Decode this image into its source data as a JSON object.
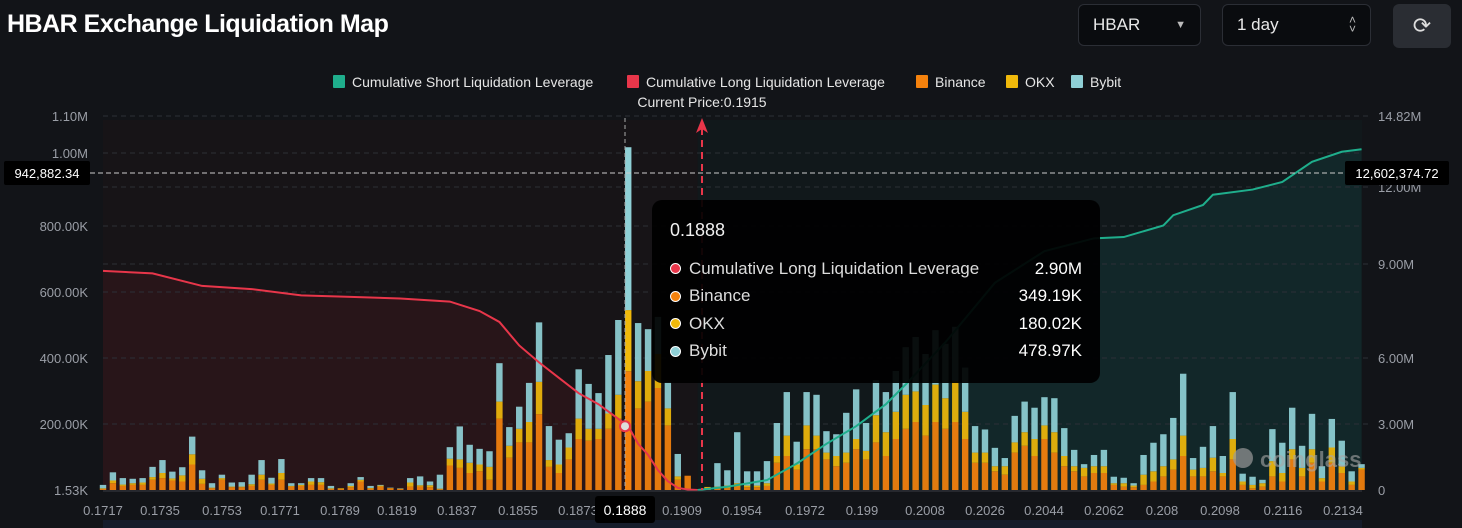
{
  "header": {
    "title": "HBAR Exchange Liquidation Map",
    "symbol_select": "HBAR",
    "range_select": "1 day",
    "refresh_icon": "refresh-icon"
  },
  "colors": {
    "short_cum": "#1fae8c",
    "long_cum": "#e8364a",
    "binance": "#f5820d",
    "okx": "#f0b90b",
    "bybit": "#8fd0d6"
  },
  "chart_data": {
    "type": "bar",
    "legend": [
      "Cumulative Short Liquidation Leverage",
      "Cumulative Long Liquidation Leverage",
      "Binance",
      "OKX",
      "Bybit"
    ],
    "legend_position": "top",
    "current_price_label": "Current Price:0.1915",
    "x_tick_labels": [
      "0.1717",
      "0.1735",
      "0.1753",
      "0.1771",
      "0.1789",
      "0.1819",
      "0.1837",
      "0.1855",
      "0.1873",
      "0.1909",
      "0.1954",
      "0.1972",
      "0.199",
      "0.2008",
      "0.2026",
      "0.2044",
      "0.2062",
      "0.208",
      "0.2098",
      "0.2116",
      "0.2134"
    ],
    "y_left_ticks": [
      "1.53K",
      "200.00K",
      "400.00K",
      "600.00K",
      "800.00K",
      "1.00M",
      "1.10M"
    ],
    "y_right_ticks": [
      "0",
      "3.00M",
      "6.00M",
      "9.00M",
      "12.00M",
      "14.82M"
    ],
    "y_left_unit": "K",
    "y_left_range": [
      0,
      1100
    ],
    "y_right_unit": "M",
    "y_right_range": [
      0,
      14.82
    ],
    "grid": true,
    "series": [
      {
        "name": "Binance",
        "values": [
          3,
          20,
          12,
          15,
          15,
          30,
          35,
          28,
          25,
          75,
          18,
          5,
          30,
          8,
          8,
          12,
          30,
          15,
          30,
          10,
          12,
          15,
          15,
          3,
          3,
          8,
          25,
          4,
          10,
          5,
          3,
          10,
          10,
          8,
          2,
          72,
          65,
          50,
          55,
          30,
          210,
          95,
          140,
          140,
          223,
          68,
          50,
          90,
          150,
          145,
          150,
          180,
          210,
          349.19,
          240,
          260,
          300,
          190,
          30,
          42,
          0,
          3,
          5,
          5,
          10,
          8,
          8,
          12,
          80,
          100,
          60,
          120,
          120,
          90,
          70,
          80,
          120,
          90,
          140,
          100,
          150,
          180,
          200,
          160,
          200,
          180,
          200,
          150,
          80,
          80,
          55,
          45,
          110,
          130,
          100,
          150,
          110,
          70,
          55,
          40,
          50,
          50,
          15,
          10,
          8,
          15,
          25,
          40,
          60,
          100,
          40,
          40,
          55,
          40,
          90,
          15,
          5,
          10,
          40,
          25,
          90,
          40,
          80,
          25,
          80,
          50,
          15,
          60
        ]
      },
      {
        "name": "OKX",
        "values": [
          2,
          8,
          4,
          5,
          7,
          8,
          15,
          6,
          18,
          30,
          15,
          2,
          5,
          2,
          2,
          5,
          15,
          4,
          20,
          2,
          3,
          10,
          8,
          2,
          2,
          4,
          5,
          2,
          3,
          1,
          1,
          12,
          4,
          6,
          2,
          20,
          25,
          30,
          20,
          38,
          50,
          35,
          40,
          60,
          95,
          20,
          25,
          35,
          60,
          35,
          30,
          45,
          70,
          180.02,
          80,
          90,
          100,
          50,
          10,
          0,
          0,
          6,
          5,
          8,
          10,
          5,
          5,
          8,
          20,
          60,
          15,
          70,
          40,
          20,
          30,
          30,
          30,
          25,
          80,
          70,
          80,
          100,
          90,
          90,
          110,
          90,
          120,
          80,
          30,
          30,
          15,
          25,
          30,
          40,
          50,
          40,
          60,
          30,
          15,
          25,
          20,
          20,
          5,
          10,
          5,
          30,
          30,
          30,
          30,
          60,
          20,
          25,
          40,
          10,
          60,
          10,
          10,
          10,
          45,
          25,
          30,
          25,
          40,
          10,
          45,
          20,
          10,
          5
        ]
      },
      {
        "name": "Bybit",
        "values": [
          10,
          24,
          19,
          13,
          13,
          30,
          38,
          20,
          24,
          52,
          25,
          13,
          10,
          12,
          13,
          28,
          43,
          17,
          41,
          8,
          5,
          10,
          12,
          7,
          0,
          8,
          8,
          6,
          2,
          1,
          1,
          13,
          26,
          11,
          41,
          34,
          97,
          53,
          46,
          46,
          113,
          55,
          65,
          115,
          175,
          100,
          73,
          42,
          145,
          132,
          105,
          172,
          220,
          478.97,
          171,
          123,
          109,
          78,
          66,
          0,
          0,
          0,
          69,
          45,
          150,
          42,
          42,
          65,
          97,
          128,
          67,
          98,
          120,
          63,
          64,
          117,
          146,
          82,
          103,
          118,
          120,
          140,
          160,
          150,
          160,
          160,
          160,
          130,
          78,
          68,
          54,
          24,
          78,
          90,
          92,
          83,
          100,
          82,
          48,
          11,
          33,
          48,
          19,
          16,
          7,
          58,
          84,
          94,
          122,
          182,
          34,
          62,
          93,
          50,
          138,
          23,
          24,
          10,
          94,
          89,
          122,
          65,
          104,
          35,
          84,
          75,
          30,
          11
        ]
      }
    ],
    "long_cumulative_points": [
      [
        0,
        8.78
      ],
      [
        5,
        8.7
      ],
      [
        10,
        8.3
      ],
      [
        15,
        8.2
      ],
      [
        20,
        8.0
      ],
      [
        25,
        7.95
      ],
      [
        30,
        7.9
      ],
      [
        35,
        7.8
      ],
      [
        38,
        7.5
      ],
      [
        40,
        7.15
      ],
      [
        42,
        6.4
      ],
      [
        44,
        5.8
      ],
      [
        46,
        5.1
      ],
      [
        48,
        4.4
      ],
      [
        50,
        3.9
      ],
      [
        53,
        2.9
      ],
      [
        54,
        2.1
      ],
      [
        55,
        1.6
      ],
      [
        56,
        0.9
      ],
      [
        57,
        0.4
      ],
      [
        58,
        0.1
      ],
      [
        59,
        0.02
      ],
      [
        60,
        0
      ]
    ],
    "short_cumulative_points": [
      [
        60,
        0
      ],
      [
        63,
        0.15
      ],
      [
        67,
        0.45
      ],
      [
        70,
        1.2
      ],
      [
        73,
        2.1
      ],
      [
        76,
        2.9
      ],
      [
        79,
        3.9
      ],
      [
        81,
        4.8
      ],
      [
        85,
        6.5
      ],
      [
        90,
        8.4
      ],
      [
        95,
        9.5
      ],
      [
        100,
        10.0
      ],
      [
        103,
        10.05
      ],
      [
        107,
        10.5
      ],
      [
        108,
        10.9
      ],
      [
        111,
        11.3
      ],
      [
        112,
        11.7
      ],
      [
        116,
        11.9
      ],
      [
        119,
        12.2
      ],
      [
        122,
        13.0
      ],
      [
        125,
        13.4
      ],
      [
        127,
        13.5
      ]
    ],
    "crosshair": {
      "x_label": "0.1888",
      "left_value": "942,882.34",
      "right_value": "12,602,374.72"
    }
  },
  "tooltip": {
    "title": "0.1888",
    "rows": [
      {
        "label": "Cumulative Long Liquidation Leverage",
        "value": "2.90M",
        "color": "#e8364a"
      },
      {
        "label": "Binance",
        "value": "349.19K",
        "color": "#f5820d"
      },
      {
        "label": "OKX",
        "value": "180.02K",
        "color": "#f0b90b"
      },
      {
        "label": "Bybit",
        "value": "478.97K",
        "color": "#8fd0d6"
      }
    ]
  },
  "watermark": "coinglass"
}
